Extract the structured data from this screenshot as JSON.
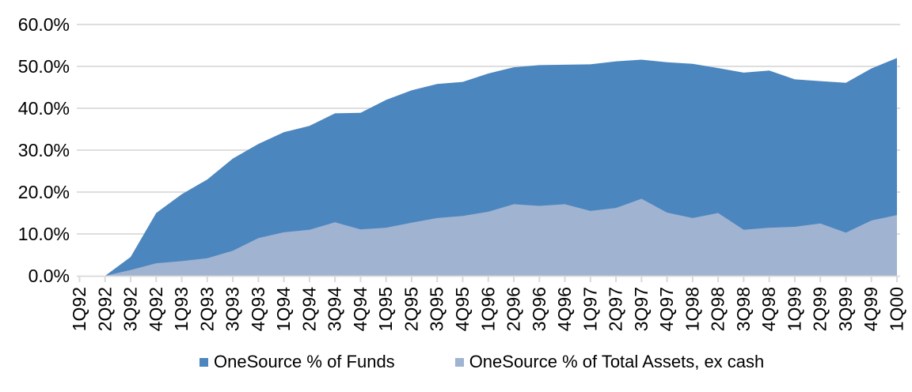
{
  "page": {
    "background_color": "#ffffff",
    "text_color": "#000000"
  },
  "axes": {
    "gridline_color": "#D9D9D9",
    "axisline_color": "#D9D9D9",
    "tick_color": "#D9D9D9",
    "y_tick_labels": [
      "0.0%",
      "10.0%",
      "20.0%",
      "30.0%",
      "40.0%",
      "50.0%",
      "60.0%"
    ]
  },
  "legend": {
    "items": [
      {
        "name": "funds",
        "label": "OneSource % of Funds",
        "color": "#4C86BF"
      },
      {
        "name": "assets",
        "label": "OneSource % of Total Assets, ex cash",
        "color": "#A0B3D1"
      }
    ]
  },
  "chart_data": {
    "type": "area",
    "stacking": "overlap",
    "title": "",
    "xlabel": "",
    "ylabel": "",
    "ylim": [
      0,
      60
    ],
    "ytick_step": 10,
    "grid": true,
    "legend_position": "bottom",
    "x_labels_rotation_deg": -90,
    "categories": [
      "1Q92",
      "2Q92",
      "3Q92",
      "4Q92",
      "1Q93",
      "2Q93",
      "3Q93",
      "4Q93",
      "1Q94",
      "2Q94",
      "3Q94",
      "4Q94",
      "1Q95",
      "2Q95",
      "3Q95",
      "4Q95",
      "1Q96",
      "2Q96",
      "3Q96",
      "4Q96",
      "1Q97",
      "2Q97",
      "3Q97",
      "4Q97",
      "1Q98",
      "2Q98",
      "3Q98",
      "4Q98",
      "1Q99",
      "2Q99",
      "3Q99",
      "4Q99",
      "1Q00"
    ],
    "series": [
      {
        "name": "OneSource % of Funds",
        "color": "#4C86BF",
        "unit": "%",
        "values": [
          0.0,
          0.0,
          4.5,
          15.0,
          19.5,
          23.0,
          28.0,
          31.5,
          34.3,
          35.8,
          38.8,
          38.9,
          42.0,
          44.3,
          45.8,
          46.3,
          48.3,
          49.8,
          50.3,
          50.4,
          50.5,
          51.2,
          51.6,
          51.0,
          50.6,
          49.6,
          48.5,
          49.0,
          46.9,
          46.5,
          46.1,
          49.5,
          52.0
        ]
      },
      {
        "name": "OneSource % of Total Assets, ex cash",
        "color": "#A0B3D1",
        "unit": "%",
        "values": [
          0.0,
          0.0,
          1.4,
          3.0,
          3.5,
          4.2,
          6.0,
          9.0,
          10.4,
          11.0,
          12.8,
          11.1,
          11.5,
          12.7,
          13.8,
          14.3,
          15.3,
          17.1,
          16.7,
          17.1,
          15.5,
          16.2,
          18.4,
          15.1,
          13.8,
          15.0,
          11.0,
          11.5,
          11.7,
          12.5,
          10.3,
          13.2,
          14.5
        ]
      }
    ]
  }
}
